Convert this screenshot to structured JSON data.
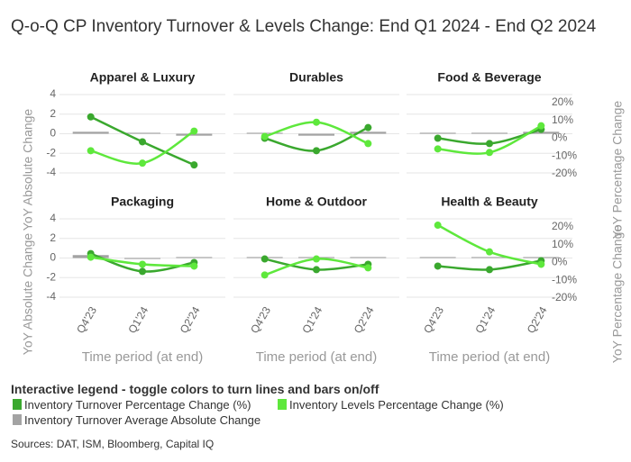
{
  "title": "Q-o-Q CP Inventory Turnover & Levels Change: End Q1 2024 - End Q2 2024",
  "legend_title": "Interactive legend - toggle colors to turn lines and bars on/off",
  "series": [
    {
      "name": "Inventory Turnover Percentage Change (%)",
      "color": "#3aa82e",
      "type": "line",
      "axis": "y2"
    },
    {
      "name": "Inventory Levels Percentage Change (%)",
      "color": "#5ee83c",
      "type": "line",
      "axis": "y2"
    },
    {
      "name": "Inventory Turnover Average Absolute Change",
      "color": "#a3a3a3",
      "type": "bar",
      "axis": "y"
    }
  ],
  "source": "Sources: DAT, ISM, Bloomberg, Capital IQ",
  "chart_data": [
    {
      "type": "line",
      "title": "Apparel & Luxury",
      "categories": [
        "Q4'23",
        "Q1'24",
        "Q2'24"
      ],
      "ylabel": "YoY Absolute Change",
      "ylim": [
        -4,
        4
      ],
      "yticks": [
        -4,
        -2,
        0,
        2,
        4
      ],
      "y2lim": [
        -20,
        20
      ],
      "series": [
        {
          "values": [
            12,
            -2,
            -15
          ]
        },
        {
          "values": [
            -7,
            -14,
            4
          ]
        },
        {
          "values": [
            0.2,
            0.1,
            -0.2
          ]
        }
      ]
    },
    {
      "type": "line",
      "title": "Durables",
      "categories": [
        "Q4'23",
        "Q1'24",
        "Q2'24"
      ],
      "ylim": [
        -4,
        4
      ],
      "yticks": [
        -4,
        -2,
        0,
        2,
        4
      ],
      "y2lim": [
        -20,
        20
      ],
      "series": [
        {
          "values": [
            0,
            -7,
            6
          ]
        },
        {
          "values": [
            1,
            9,
            -3
          ]
        },
        {
          "values": [
            0.1,
            -0.2,
            0.2
          ]
        }
      ]
    },
    {
      "type": "line",
      "title": "Food & Beverage",
      "categories": [
        "Q4'23",
        "Q1'24",
        "Q2'24"
      ],
      "ylim": [
        -4,
        4
      ],
      "yticks": [
        -4,
        -2,
        0,
        2,
        4
      ],
      "y2label": "YoY Percentage Change",
      "y2lim": [
        -20,
        20
      ],
      "y2ticks": [
        {
          "value": -20,
          "label": "-20%"
        },
        {
          "value": -10,
          "label": "-10%"
        },
        {
          "value": 0,
          "label": "0%"
        },
        {
          "value": 10,
          "label": "10%"
        },
        {
          "value": 20,
          "label": "20%"
        }
      ],
      "series": [
        {
          "values": [
            0,
            -3,
            5
          ]
        },
        {
          "values": [
            -6,
            -8,
            7
          ]
        },
        {
          "values": [
            0.1,
            0.1,
            0.2
          ]
        }
      ]
    },
    {
      "type": "line",
      "title": "Packaging",
      "categories": [
        "Q4'23",
        "Q1'24",
        "Q2'24"
      ],
      "xlabel": "Time period (at end)",
      "ylabel": "YoY Absolute Change",
      "ylim": [
        -4,
        4
      ],
      "yticks": [
        -4,
        -2,
        0,
        2,
        4
      ],
      "y2lim": [
        -20,
        20
      ],
      "series": [
        {
          "values": [
            5,
            -5,
            0
          ]
        },
        {
          "values": [
            3,
            -1,
            -2
          ]
        },
        {
          "values": [
            0.3,
            -0.1,
            0.1
          ]
        }
      ]
    },
    {
      "type": "line",
      "title": "Home & Outdoor",
      "categories": [
        "Q4'23",
        "Q1'24",
        "Q2'24"
      ],
      "xlabel": "Time period (at end)",
      "ylim": [
        -4,
        4
      ],
      "yticks": [
        -4,
        -2,
        0,
        2,
        4
      ],
      "y2lim": [
        -20,
        20
      ],
      "series": [
        {
          "values": [
            2,
            -4,
            -1
          ]
        },
        {
          "values": [
            -7,
            2,
            -3
          ]
        },
        {
          "values": [
            0.1,
            0.1,
            0.1
          ]
        }
      ]
    },
    {
      "type": "line",
      "title": "Health & Beauty",
      "categories": [
        "Q4'23",
        "Q1'24",
        "Q2'24"
      ],
      "xlabel": "Time period (at end)",
      "ylim": [
        -4,
        4
      ],
      "yticks": [
        -4,
        -2,
        0,
        2,
        4
      ],
      "y2label": "YoY Percentage Change",
      "y2lim": [
        -20,
        20
      ],
      "y2ticks": [
        {
          "value": -20,
          "label": "-20%"
        },
        {
          "value": -10,
          "label": "-10%"
        },
        {
          "value": 0,
          "label": "0%"
        },
        {
          "value": 10,
          "label": "10%"
        },
        {
          "value": 20,
          "label": "20%"
        }
      ],
      "series": [
        {
          "values": [
            -2,
            -4,
            1
          ]
        },
        {
          "values": [
            21,
            6,
            -1
          ]
        },
        {
          "values": [
            0.1,
            0.1,
            0.1
          ]
        }
      ]
    }
  ]
}
